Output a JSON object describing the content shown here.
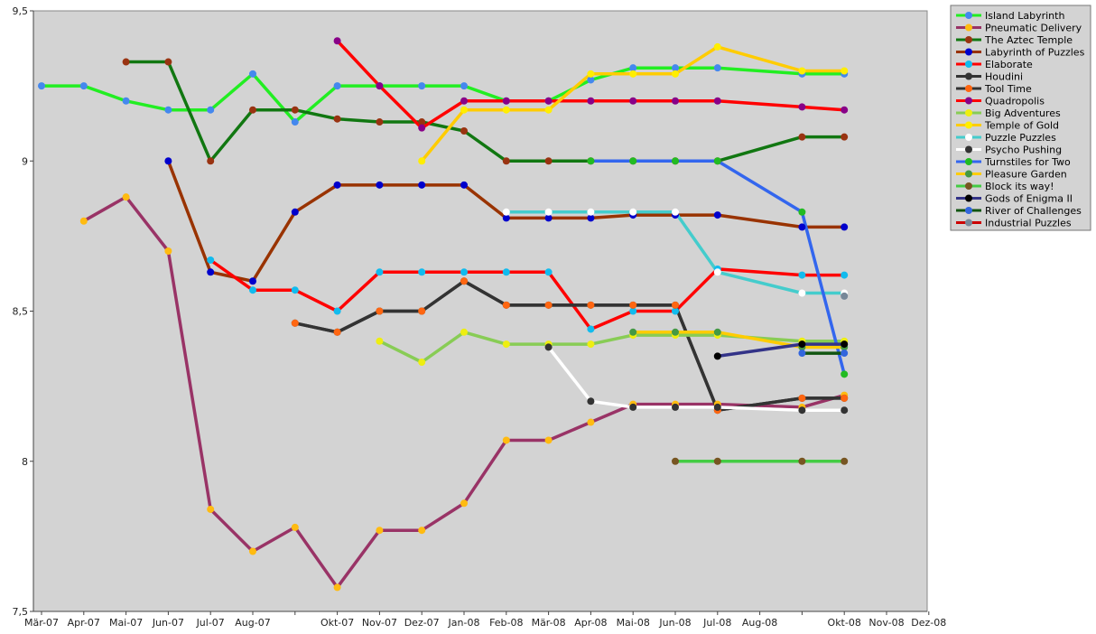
{
  "chart_data": {
    "type": "line",
    "title": "",
    "xlabel": "",
    "ylabel": "",
    "ylim": [
      7.5,
      9.5
    ],
    "y_ticks": [
      "7,5",
      "8",
      "8,5",
      "9",
      "9,5"
    ],
    "x_ticks": [
      "Mär-07",
      "Apr-07",
      "Mai-07",
      "Jun-07",
      "Jul-07",
      "Aug-07",
      "",
      "Okt-07",
      "Nov-07",
      "Dez-07",
      "Jan-08",
      "Feb-08",
      "Mär-08",
      "Apr-08",
      "Mai-08",
      "Jun-08",
      "Jul-08",
      "Aug-08",
      "",
      "Okt-08",
      "Nov-08",
      "Dez-08"
    ],
    "grid": false,
    "legend_placement": "right",
    "plot_background": "#d3d3d3",
    "series": [
      {
        "name": "Island Labyrinth",
        "line_color": "#22ee22",
        "marker_color": "#4488ee",
        "points": [
          [
            0,
            9.25
          ],
          [
            1,
            9.25
          ],
          [
            2,
            9.2
          ],
          [
            3,
            9.17
          ],
          [
            4,
            9.17
          ],
          [
            5,
            9.29
          ],
          [
            6,
            9.13
          ],
          [
            7,
            9.25
          ],
          [
            8,
            9.25
          ],
          [
            9,
            9.25
          ],
          [
            10,
            9.25
          ],
          [
            11,
            9.2
          ],
          [
            12,
            9.2
          ],
          [
            13,
            9.27
          ],
          [
            14,
            9.31
          ],
          [
            15,
            9.31
          ],
          [
            16,
            9.31
          ],
          [
            18,
            9.29
          ],
          [
            19,
            9.29
          ]
        ]
      },
      {
        "name": "Pneumatic Delivery",
        "line_color": "#993366",
        "marker_color": "#ffbb11",
        "points": [
          [
            1,
            8.8
          ],
          [
            2,
            8.88
          ],
          [
            3,
            8.7
          ],
          [
            4,
            7.84
          ],
          [
            5,
            7.7
          ],
          [
            6,
            7.78
          ],
          [
            7,
            7.58
          ],
          [
            8,
            7.77
          ],
          [
            9,
            7.77
          ],
          [
            10,
            7.86
          ],
          [
            11,
            8.07
          ],
          [
            12,
            8.07
          ],
          [
            13,
            8.13
          ],
          [
            14,
            8.19
          ],
          [
            15,
            8.19
          ],
          [
            16,
            8.19
          ],
          [
            18,
            8.18
          ],
          [
            19,
            8.22
          ]
        ]
      },
      {
        "name": "The Aztec Temple",
        "line_color": "#117711",
        "marker_color": "#993311",
        "points": [
          [
            2,
            9.33
          ],
          [
            3,
            9.33
          ],
          [
            4,
            9.0
          ],
          [
            5,
            9.17
          ],
          [
            6,
            9.17
          ],
          [
            7,
            9.14
          ],
          [
            8,
            9.13
          ],
          [
            9,
            9.13
          ],
          [
            10,
            9.1
          ],
          [
            11,
            9.0
          ],
          [
            12,
            9.0
          ],
          [
            13,
            9.0
          ],
          [
            14,
            9.0
          ],
          [
            15,
            9.0
          ],
          [
            16,
            9.0
          ],
          [
            18,
            9.08
          ],
          [
            19,
            9.08
          ]
        ]
      },
      {
        "name": "Labyrinth of Puzzles",
        "line_color": "#993300",
        "marker_color": "#0000cc",
        "points": [
          [
            3,
            9.0
          ],
          [
            4,
            8.63
          ],
          [
            5,
            8.6
          ],
          [
            6,
            8.83
          ],
          [
            7,
            8.92
          ],
          [
            8,
            8.92
          ],
          [
            9,
            8.92
          ],
          [
            10,
            8.92
          ],
          [
            11,
            8.81
          ],
          [
            12,
            8.81
          ],
          [
            13,
            8.81
          ],
          [
            14,
            8.82
          ],
          [
            15,
            8.82
          ],
          [
            16,
            8.82
          ],
          [
            18,
            8.78
          ],
          [
            19,
            8.78
          ]
        ]
      },
      {
        "name": "Elaborate",
        "line_color": "#ff0000",
        "marker_color": "#11bbee",
        "points": [
          [
            4,
            8.67
          ],
          [
            5,
            8.57
          ],
          [
            6,
            8.57
          ],
          [
            7,
            8.5
          ],
          [
            8,
            8.63
          ],
          [
            9,
            8.63
          ],
          [
            10,
            8.63
          ],
          [
            11,
            8.63
          ],
          [
            12,
            8.63
          ],
          [
            13,
            8.44
          ],
          [
            14,
            8.5
          ],
          [
            15,
            8.5
          ],
          [
            16,
            8.64
          ],
          [
            18,
            8.62
          ],
          [
            19,
            8.62
          ]
        ]
      },
      {
        "name": "Houdini",
        "line_color": "#333333",
        "marker_color": "#333333",
        "points": [
          [
            6,
            8.46
          ],
          [
            7,
            8.43
          ],
          [
            8,
            8.5
          ],
          [
            9,
            8.5
          ],
          [
            10,
            8.6
          ],
          [
            11,
            8.52
          ],
          [
            12,
            8.52
          ],
          [
            13,
            8.52
          ],
          [
            14,
            8.52
          ],
          [
            15,
            8.52
          ],
          [
            16,
            8.17
          ],
          [
            18,
            8.21
          ],
          [
            19,
            8.21
          ]
        ]
      },
      {
        "name": "Tool Time",
        "line_color": "#333333",
        "marker_color": "#ff6611",
        "points": [
          [
            6,
            8.46
          ],
          [
            7,
            8.43
          ],
          [
            8,
            8.5
          ],
          [
            9,
            8.5
          ],
          [
            10,
            8.6
          ],
          [
            11,
            8.52
          ],
          [
            12,
            8.52
          ],
          [
            13,
            8.52
          ],
          [
            14,
            8.52
          ],
          [
            15,
            8.52
          ],
          [
            16,
            8.17
          ],
          [
            18,
            8.21
          ],
          [
            19,
            8.21
          ]
        ]
      },
      {
        "name": "Quadropolis",
        "line_color": "#ff0000",
        "marker_color": "#880088",
        "points": [
          [
            7,
            9.4
          ],
          [
            8,
            9.25
          ],
          [
            9,
            9.11
          ],
          [
            10,
            9.2
          ],
          [
            11,
            9.2
          ],
          [
            12,
            9.2
          ],
          [
            13,
            9.2
          ],
          [
            14,
            9.2
          ],
          [
            15,
            9.2
          ],
          [
            16,
            9.2
          ],
          [
            18,
            9.18
          ],
          [
            19,
            9.17
          ]
        ]
      },
      {
        "name": "Big Adventures",
        "line_color": "#88cc55",
        "marker_color": "#eeee11",
        "points": [
          [
            8,
            8.4
          ],
          [
            9,
            8.33
          ],
          [
            10,
            8.43
          ],
          [
            11,
            8.39
          ],
          [
            12,
            8.39
          ],
          [
            13,
            8.39
          ],
          [
            14,
            8.42
          ],
          [
            15,
            8.42
          ],
          [
            16,
            8.42
          ],
          [
            18,
            8.4
          ],
          [
            19,
            8.4
          ]
        ]
      },
      {
        "name": "Temple of Gold",
        "line_color": "#ffcc00",
        "marker_color": "#ffee00",
        "points": [
          [
            9,
            9.0
          ],
          [
            10,
            9.17
          ],
          [
            11,
            9.17
          ],
          [
            12,
            9.17
          ],
          [
            13,
            9.29
          ],
          [
            14,
            9.29
          ],
          [
            15,
            9.29
          ],
          [
            16,
            9.38
          ],
          [
            18,
            9.3
          ],
          [
            19,
            9.3
          ]
        ]
      },
      {
        "name": "Puzzle Puzzles",
        "line_color": "#44cccc",
        "marker_color": "#ffffff",
        "points": [
          [
            11,
            8.83
          ],
          [
            12,
            8.83
          ],
          [
            13,
            8.83
          ],
          [
            14,
            8.83
          ],
          [
            15,
            8.83
          ],
          [
            16,
            8.63
          ],
          [
            18,
            8.56
          ],
          [
            19,
            8.56
          ]
        ]
      },
      {
        "name": "Psycho Pushing",
        "line_color": "#ffffff",
        "marker_color": "#333333",
        "points": [
          [
            12,
            8.38
          ],
          [
            13,
            8.2
          ],
          [
            14,
            8.18
          ],
          [
            15,
            8.18
          ],
          [
            16,
            8.18
          ],
          [
            18,
            8.17
          ],
          [
            19,
            8.17
          ]
        ]
      },
      {
        "name": "Turnstiles for Two",
        "line_color": "#3366ee",
        "marker_color": "#22bb22",
        "points": [
          [
            13,
            9.0
          ],
          [
            14,
            9.0
          ],
          [
            15,
            9.0
          ],
          [
            16,
            9.0
          ],
          [
            18,
            8.83
          ],
          [
            19,
            8.29
          ]
        ]
      },
      {
        "name": "Pleasure Garden",
        "line_color": "#ffcc00",
        "marker_color": "#449944",
        "points": [
          [
            14,
            8.43
          ],
          [
            15,
            8.43
          ],
          [
            16,
            8.43
          ],
          [
            18,
            8.38
          ],
          [
            19,
            8.38
          ]
        ]
      },
      {
        "name": "Block its way!",
        "line_color": "#44cc44",
        "marker_color": "#775522",
        "points": [
          [
            15,
            8.0
          ],
          [
            16,
            8.0
          ],
          [
            18,
            8.0
          ],
          [
            19,
            8.0
          ]
        ]
      },
      {
        "name": "Gods of Enigma II",
        "line_color": "#333388",
        "marker_color": "#000000",
        "points": [
          [
            16,
            8.35
          ],
          [
            18,
            8.39
          ],
          [
            19,
            8.39
          ]
        ]
      },
      {
        "name": "River of Challenges",
        "line_color": "#115511",
        "marker_color": "#3366dd",
        "points": [
          [
            18,
            8.36
          ],
          [
            19,
            8.36
          ]
        ]
      },
      {
        "name": "Industrial Puzzles",
        "line_color": "#cc0000",
        "marker_color": "#778899",
        "points": [
          [
            19,
            8.55
          ]
        ]
      }
    ]
  }
}
